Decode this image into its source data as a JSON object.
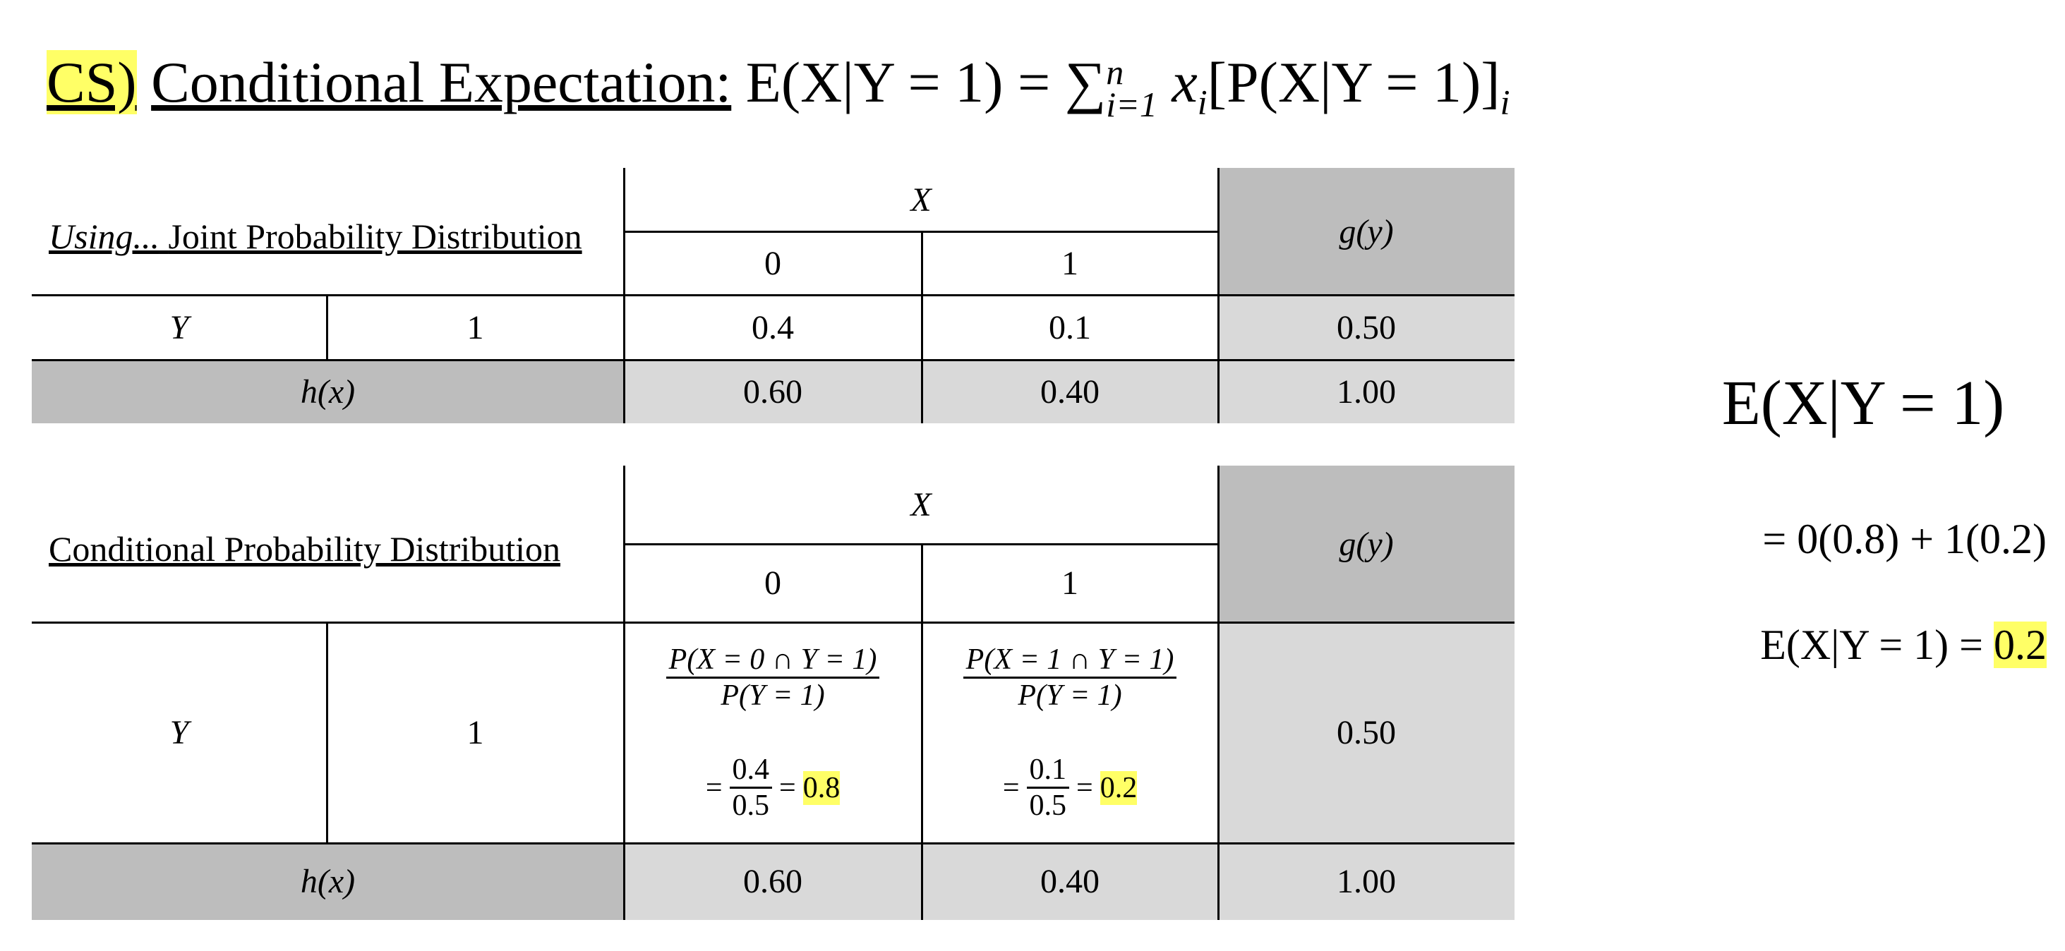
{
  "header": {
    "tag": "CS)",
    "title": "Conditional Expectation:",
    "formula": {
      "lhs": "E(X|Y = 1) = ",
      "sum": "∑",
      "sup": "n",
      "sub": "i=1",
      "term": "x",
      "term_sub": "i",
      "bracket": "[P(X|Y = 1)]",
      "bracket_sub": "i"
    }
  },
  "joint_table": {
    "caption_prefix": "Using...",
    "caption": "Joint Probability Distribution",
    "x_header": "X",
    "x_values": [
      "0",
      "1"
    ],
    "g_header": "g(y)",
    "y_label": "Y",
    "y_value": "1",
    "cells": [
      "0.4",
      "0.1"
    ],
    "g_value": "0.50",
    "h_label": "h(x)",
    "h_values": [
      "0.60",
      "0.40"
    ],
    "total": "1.00"
  },
  "conditional_table": {
    "caption": "Conditional Probability Distribution",
    "x_header": "X",
    "x_values": [
      "0",
      "1"
    ],
    "g_header": "g(y)",
    "y_label": "Y",
    "y_value": "1",
    "cells": [
      {
        "numerator": "P(X = 0 ∩ Y = 1)",
        "denominator": "P(Y = 1)",
        "equals": "=",
        "num": "0.4",
        "den": "0.5",
        "equals2": "=",
        "result": "0.8"
      },
      {
        "numerator": "P(X = 1 ∩ Y = 1)",
        "denominator": "P(Y = 1)",
        "equals": "=",
        "num": "0.1",
        "den": "0.5",
        "equals2": "=",
        "result": "0.2"
      }
    ],
    "g_value": "0.50",
    "h_label": "h(x)",
    "h_values": [
      "0.60",
      "0.40"
    ],
    "total": "1.00"
  },
  "result": {
    "heading": "E(X|Y = 1)",
    "expansion": "= 0(0.8) + 1(0.2)",
    "final_lhs": "E(X|Y = 1) = ",
    "final_value": "0.2"
  }
}
